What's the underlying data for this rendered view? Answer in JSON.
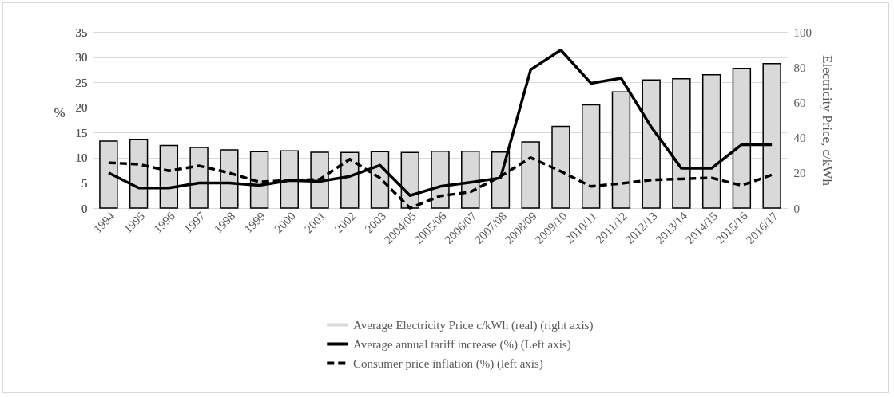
{
  "chart_data": {
    "type": "line",
    "categories": [
      "1994",
      "1995",
      "1996",
      "1997",
      "1998",
      "1999",
      "2000",
      "2001",
      "2002",
      "2003",
      "2004/05",
      "2005/06",
      "2006/07",
      "2007/08",
      "2008/09",
      "2009/10",
      "2010/11",
      "2011/12",
      "2012/13",
      "2013/14",
      "2014/15",
      "2015/16",
      "2016/17"
    ],
    "ylabel": "%",
    "y2label": "Electricity Price, c/kWh",
    "ylim": [
      0,
      35
    ],
    "yticks": [
      0,
      5,
      10,
      15,
      20,
      25,
      30,
      35
    ],
    "y2lim": [
      0,
      100
    ],
    "y2ticks": [
      0,
      20,
      40,
      60,
      80,
      100
    ],
    "grid": "y",
    "legend": "bottom",
    "series": [
      {
        "name": "Average Electricity Price c/kWh (real) (right axis)",
        "type": "bar",
        "axis": "y2",
        "color": "#d9d9d9",
        "values": [
          38,
          39,
          35.5,
          34.4,
          33,
          32,
          32.5,
          31.7,
          31.6,
          32,
          31.6,
          32.2,
          32.2,
          31.8,
          37.6,
          46.4,
          58.6,
          66,
          72.7,
          73.4,
          75.7,
          79.3,
          82
        ]
      },
      {
        "name": "Average annual tariff increase (%) (Left axis)",
        "color": "#000000",
        "line_style": "solid",
        "values": [
          7,
          4,
          4,
          5,
          5,
          4.5,
          5.5,
          5.3,
          6.3,
          8.5,
          2.5,
          4.3,
          5.1,
          6,
          27.5,
          31.4,
          24.8,
          25.8,
          16.1,
          7.9,
          7.9,
          12.6,
          12.6
        ]
      },
      {
        "name": "Consumer price inflation (%) (left axis)",
        "color": "#000000",
        "line_style": "dashed",
        "values": [
          9,
          8.7,
          7.4,
          8.4,
          7,
          5.2,
          5.5,
          5.7,
          9.7,
          6,
          0,
          2.4,
          3.2,
          6.3,
          10,
          7.3,
          4.3,
          4.9,
          5.6,
          5.8,
          6,
          4.5,
          6.6
        ]
      }
    ]
  }
}
